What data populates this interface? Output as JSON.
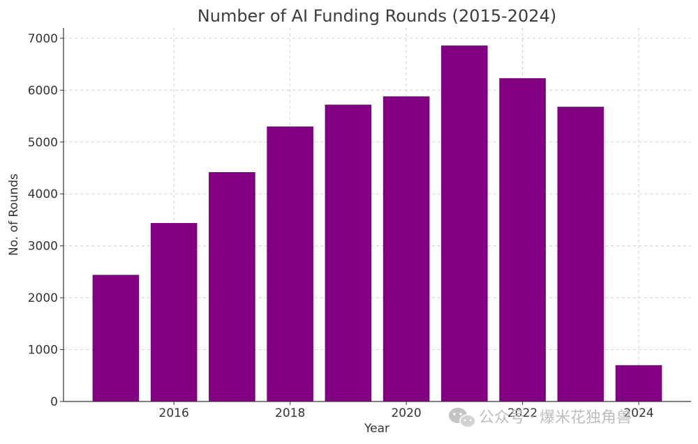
{
  "chart_data": {
    "type": "bar",
    "title": "Number of AI Funding Rounds (2015-2024)",
    "xlabel": "Year",
    "ylabel": "No. of Rounds",
    "categories": [
      2015,
      2016,
      2017,
      2018,
      2019,
      2020,
      2021,
      2022,
      2023,
      2024
    ],
    "values": [
      2440,
      3440,
      4420,
      5300,
      5720,
      5880,
      6860,
      6230,
      5680,
      700
    ],
    "x_ticks": [
      2016,
      2018,
      2020,
      2022,
      2024
    ],
    "y_ticks": [
      0,
      1000,
      2000,
      3000,
      4000,
      5000,
      6000,
      7000
    ],
    "ylim": [
      0,
      7200
    ],
    "xlim": [
      2014.1,
      2024.9
    ],
    "bar_color": "#800080",
    "grid": true
  },
  "watermark": {
    "icon": "wechat-icon",
    "text": "公众号 · 爆米花独角兽"
  }
}
